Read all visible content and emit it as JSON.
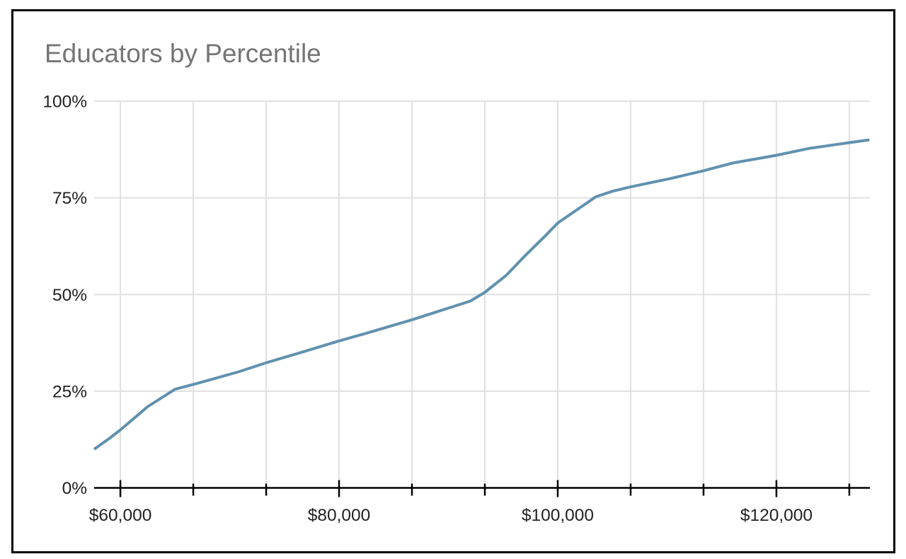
{
  "frame": {
    "border_color": "#000000",
    "background_color": "#ffffff"
  },
  "chart_data": {
    "type": "line",
    "title": "Educators by Percentile",
    "title_color": "#757575",
    "xlabel": "",
    "ylabel": "",
    "xlim": [
      57600,
      128550
    ],
    "ylim": [
      0,
      100
    ],
    "legend_position": "none",
    "grid": {
      "show": true,
      "color": "#e0e0e0"
    },
    "axis": {
      "line_color": "#000000",
      "tick_color": "#000000",
      "label_color": "#222222"
    },
    "x_ticks": [
      {
        "value": 60000,
        "label": "$60,000",
        "major": true
      },
      {
        "value": 66667,
        "label": "",
        "major": false
      },
      {
        "value": 73333,
        "label": "",
        "major": false
      },
      {
        "value": 80000,
        "label": "$80,000",
        "major": true
      },
      {
        "value": 86667,
        "label": "",
        "major": false
      },
      {
        "value": 93333,
        "label": "",
        "major": false
      },
      {
        "value": 100000,
        "label": "$100,000",
        "major": true
      },
      {
        "value": 106667,
        "label": "",
        "major": false
      },
      {
        "value": 113333,
        "label": "",
        "major": false
      },
      {
        "value": 120000,
        "label": "$120,000",
        "major": true
      },
      {
        "value": 126667,
        "label": "",
        "major": false
      }
    ],
    "y_ticks": [
      {
        "value": 0,
        "label": "0%"
      },
      {
        "value": 25,
        "label": "25%"
      },
      {
        "value": 50,
        "label": "50%"
      },
      {
        "value": 75,
        "label": "75%"
      },
      {
        "value": 100,
        "label": "100%"
      }
    ],
    "series": [
      {
        "name": "Educators",
        "color": "#6191af",
        "stroke_width": 4,
        "points": [
          [
            57600,
            10.0
          ],
          [
            59000,
            12.8
          ],
          [
            60000,
            15.0
          ],
          [
            62500,
            21.0
          ],
          [
            65000,
            25.5
          ],
          [
            67000,
            27.0
          ],
          [
            70800,
            30.0
          ],
          [
            73500,
            32.5
          ],
          [
            76500,
            35.0
          ],
          [
            80000,
            38.0
          ],
          [
            82500,
            40.0
          ],
          [
            86700,
            43.5
          ],
          [
            90000,
            46.5
          ],
          [
            92000,
            48.3
          ],
          [
            93300,
            50.5
          ],
          [
            95300,
            55.0
          ],
          [
            97000,
            60.0
          ],
          [
            98800,
            65.0
          ],
          [
            100000,
            68.5
          ],
          [
            101800,
            72.0
          ],
          [
            103500,
            75.3
          ],
          [
            105000,
            76.7
          ],
          [
            106600,
            77.8
          ],
          [
            110300,
            80.0
          ],
          [
            113300,
            82.0
          ],
          [
            116000,
            84.0
          ],
          [
            120000,
            86.0
          ],
          [
            123000,
            87.8
          ],
          [
            126700,
            89.3
          ],
          [
            128500,
            90.0
          ]
        ]
      }
    ]
  }
}
